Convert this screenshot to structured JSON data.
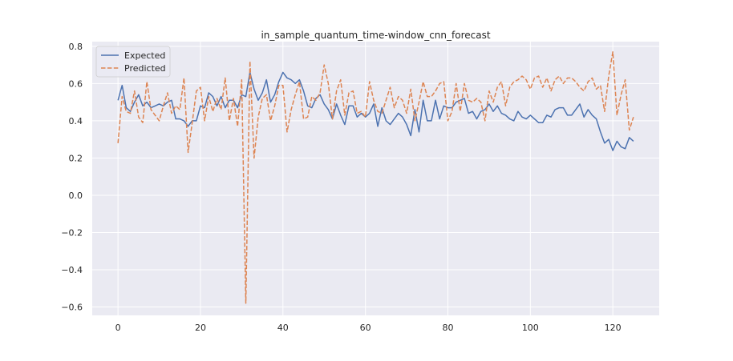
{
  "chart_data": {
    "type": "line",
    "title": "in_sample_quantum_time-window_cnn_forecast",
    "xlabel": "",
    "ylabel": "",
    "xlim": [
      -6.25,
      131.25
    ],
    "ylim": [
      -0.645,
      0.825
    ],
    "x_ticks": [
      0,
      20,
      40,
      60,
      80,
      100,
      120
    ],
    "y_ticks": [
      -0.6,
      -0.4,
      -0.2,
      0.0,
      0.2,
      0.4,
      0.6,
      0.8
    ],
    "x_tick_labels": [
      "0",
      "20",
      "40",
      "60",
      "80",
      "100",
      "120"
    ],
    "y_tick_labels": [
      "−0.6",
      "−0.4",
      "−0.2",
      "0.0",
      "0.2",
      "0.4",
      "0.6",
      "0.8"
    ],
    "grid": true,
    "legend_position": "top-left",
    "series": [
      {
        "name": "Expected",
        "color": "#4c72b0",
        "style": "solid",
        "values": [
          0.51,
          0.59,
          0.47,
          0.45,
          0.5,
          0.54,
          0.48,
          0.5,
          0.47,
          0.48,
          0.49,
          0.48,
          0.5,
          0.51,
          0.41,
          0.41,
          0.4,
          0.37,
          0.4,
          0.4,
          0.48,
          0.47,
          0.55,
          0.53,
          0.48,
          0.53,
          0.47,
          0.51,
          0.51,
          0.47,
          0.54,
          0.53,
          0.66,
          0.57,
          0.51,
          0.55,
          0.62,
          0.5,
          0.54,
          0.61,
          0.66,
          0.63,
          0.62,
          0.6,
          0.62,
          0.56,
          0.48,
          0.47,
          0.52,
          0.54,
          0.49,
          0.46,
          0.41,
          0.49,
          0.43,
          0.38,
          0.48,
          0.48,
          0.42,
          0.44,
          0.42,
          0.44,
          0.49,
          0.37,
          0.47,
          0.4,
          0.38,
          0.41,
          0.44,
          0.42,
          0.38,
          0.32,
          0.46,
          0.34,
          0.51,
          0.4,
          0.4,
          0.51,
          0.41,
          0.48,
          0.47,
          0.47,
          0.5,
          0.51,
          0.52,
          0.44,
          0.45,
          0.41,
          0.45,
          0.46,
          0.49,
          0.45,
          0.48,
          0.44,
          0.43,
          0.41,
          0.4,
          0.45,
          0.42,
          0.41,
          0.43,
          0.41,
          0.39,
          0.39,
          0.43,
          0.42,
          0.46,
          0.47,
          0.47,
          0.43,
          0.43,
          0.46,
          0.49,
          0.42,
          0.46,
          0.43,
          0.41,
          0.34,
          0.28,
          0.3,
          0.24,
          0.29,
          0.26,
          0.25,
          0.31,
          0.29
        ]
      },
      {
        "name": "Predicted",
        "color": "#dd8452",
        "style": "dashed",
        "values": [
          0.28,
          0.53,
          0.45,
          0.44,
          0.56,
          0.42,
          0.39,
          0.61,
          0.46,
          0.43,
          0.4,
          0.48,
          0.55,
          0.44,
          0.48,
          0.46,
          0.63,
          0.23,
          0.39,
          0.56,
          0.58,
          0.4,
          0.53,
          0.45,
          0.52,
          0.46,
          0.63,
          0.4,
          0.52,
          0.37,
          0.62,
          -0.58,
          0.72,
          0.2,
          0.42,
          0.52,
          0.54,
          0.4,
          0.48,
          0.59,
          0.59,
          0.34,
          0.46,
          0.54,
          0.61,
          0.41,
          0.42,
          0.53,
          0.51,
          0.55,
          0.7,
          0.6,
          0.41,
          0.56,
          0.62,
          0.43,
          0.55,
          0.56,
          0.44,
          0.45,
          0.42,
          0.61,
          0.51,
          0.45,
          0.44,
          0.51,
          0.58,
          0.47,
          0.53,
          0.51,
          0.44,
          0.57,
          0.4,
          0.5,
          0.61,
          0.53,
          0.53,
          0.56,
          0.6,
          0.61,
          0.4,
          0.45,
          0.6,
          0.45,
          0.6,
          0.51,
          0.5,
          0.52,
          0.5,
          0.4,
          0.56,
          0.5,
          0.58,
          0.61,
          0.48,
          0.58,
          0.61,
          0.62,
          0.64,
          0.62,
          0.57,
          0.63,
          0.64,
          0.58,
          0.63,
          0.56,
          0.62,
          0.64,
          0.6,
          0.63,
          0.63,
          0.61,
          0.58,
          0.56,
          0.61,
          0.63,
          0.57,
          0.59,
          0.45,
          0.64,
          0.77,
          0.43,
          0.54,
          0.62,
          0.35,
          0.42
        ]
      }
    ]
  }
}
